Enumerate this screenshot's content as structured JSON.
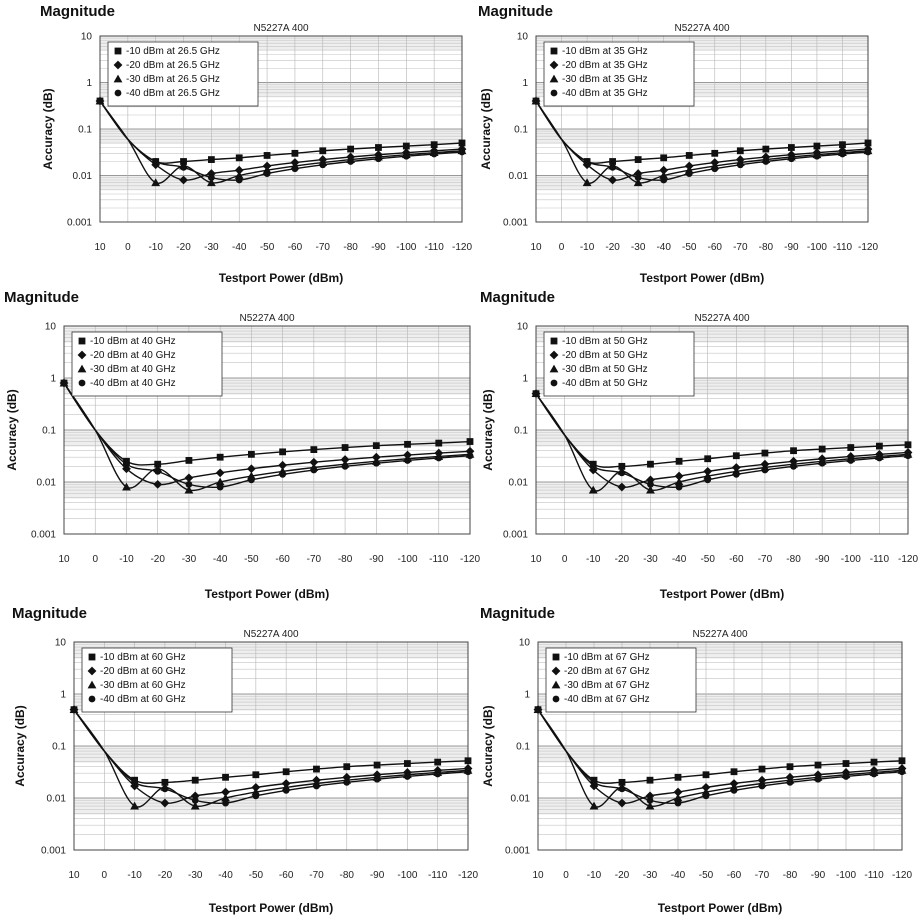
{
  "chart_data": [
    {
      "type": "line",
      "heading": "Magnitude",
      "title": "N5227A 400",
      "xlabel": "Testport Power (dBm)",
      "ylabel": "Accuracy (dB)",
      "y_scale": "log",
      "ylim": [
        0.001,
        10
      ],
      "y_ticks": [
        "10",
        "1",
        "0.1",
        "0.01",
        "0.001"
      ],
      "x": [
        10,
        0,
        -10,
        -20,
        -30,
        -40,
        -50,
        -60,
        -70,
        -80,
        -90,
        -100,
        -110,
        -120
      ],
      "x_ticks": [
        "10",
        "0",
        "-10",
        "-20",
        "-30",
        "-40",
        "-50",
        "-60",
        "-70",
        "-80",
        "-90",
        "-100",
        "-110",
        "-120"
      ],
      "grid": true,
      "legend_position": "top-left",
      "series": [
        {
          "name": "-10 dBm at 26.5 GHz",
          "marker": "square",
          "values": [
            0.4,
            0.06,
            0.02,
            0.02,
            0.022,
            0.024,
            0.027,
            0.03,
            0.034,
            0.037,
            0.04,
            0.043,
            0.046,
            0.05
          ]
        },
        {
          "name": "-20 dBm at 26.5 GHz",
          "marker": "diamond",
          "values": [
            0.4,
            0.06,
            0.017,
            0.008,
            0.011,
            0.013,
            0.016,
            0.019,
            0.022,
            0.025,
            0.028,
            0.031,
            0.034,
            0.037
          ]
        },
        {
          "name": "-30 dBm at 26.5 GHz",
          "marker": "triangle",
          "values": [
            0.4,
            0.06,
            0.007,
            0.016,
            0.007,
            0.01,
            0.013,
            0.016,
            0.019,
            0.022,
            0.025,
            0.028,
            0.031,
            0.034
          ]
        },
        {
          "name": "-40 dBm at 26.5 GHz",
          "marker": "circle",
          "values": [
            0.4,
            0.06,
            0.02,
            0.015,
            0.009,
            0.008,
            0.011,
            0.014,
            0.017,
            0.02,
            0.023,
            0.026,
            0.029,
            0.032
          ]
        }
      ]
    },
    {
      "type": "line",
      "heading": "Magnitude",
      "title": "N5227A 400",
      "xlabel": "Testport Power (dBm)",
      "ylabel": "Accuracy (dB)",
      "y_scale": "log",
      "ylim": [
        0.001,
        10
      ],
      "y_ticks": [
        "10",
        "1",
        "0.1",
        "0.01",
        "0.001"
      ],
      "x": [
        10,
        0,
        -10,
        -20,
        -30,
        -40,
        -50,
        -60,
        -70,
        -80,
        -90,
        -100,
        -110,
        -120
      ],
      "x_ticks": [
        "10",
        "0",
        "-10",
        "-20",
        "-30",
        "-40",
        "-50",
        "-60",
        "-70",
        "-80",
        "-90",
        "-100",
        "-110",
        "-120"
      ],
      "grid": true,
      "legend_position": "top-left",
      "series": [
        {
          "name": "-10 dBm at 35 GHz",
          "marker": "square",
          "values": [
            0.4,
            0.06,
            0.02,
            0.02,
            0.022,
            0.024,
            0.027,
            0.03,
            0.034,
            0.037,
            0.04,
            0.043,
            0.046,
            0.05
          ]
        },
        {
          "name": "-20 dBm at 35 GHz",
          "marker": "diamond",
          "values": [
            0.4,
            0.06,
            0.017,
            0.008,
            0.011,
            0.013,
            0.016,
            0.019,
            0.022,
            0.025,
            0.028,
            0.031,
            0.034,
            0.037
          ]
        },
        {
          "name": "-30 dBm at 35 GHz",
          "marker": "triangle",
          "values": [
            0.4,
            0.06,
            0.007,
            0.016,
            0.007,
            0.01,
            0.013,
            0.016,
            0.019,
            0.022,
            0.025,
            0.028,
            0.031,
            0.034
          ]
        },
        {
          "name": "-40 dBm at 35 GHz",
          "marker": "circle",
          "values": [
            0.4,
            0.06,
            0.02,
            0.015,
            0.009,
            0.008,
            0.011,
            0.014,
            0.017,
            0.02,
            0.023,
            0.026,
            0.029,
            0.032
          ]
        }
      ]
    },
    {
      "type": "line",
      "heading": "Magnitude",
      "title": "N5227A 400",
      "xlabel": "Testport Power (dBm)",
      "ylabel": "Accuracy (dB)",
      "y_scale": "log",
      "ylim": [
        0.001,
        10
      ],
      "y_ticks": [
        "10",
        "1",
        "0.1",
        "0.01",
        "0.001"
      ],
      "x": [
        10,
        0,
        -10,
        -20,
        -30,
        -40,
        -50,
        -60,
        -70,
        -80,
        -90,
        -100,
        -110,
        -120
      ],
      "x_ticks": [
        "10",
        "0",
        "-10",
        "-20",
        "-30",
        "-40",
        "-50",
        "-60",
        "-70",
        "-80",
        "-90",
        "-100",
        "-110",
        "-120"
      ],
      "grid": true,
      "legend_position": "top-left",
      "series": [
        {
          "name": "-10 dBm at 40 GHz",
          "marker": "square",
          "values": [
            0.8,
            0.1,
            0.025,
            0.022,
            0.026,
            0.03,
            0.034,
            0.038,
            0.042,
            0.046,
            0.05,
            0.053,
            0.056,
            0.06
          ]
        },
        {
          "name": "-20 dBm at 40 GHz",
          "marker": "diamond",
          "values": [
            0.8,
            0.1,
            0.018,
            0.009,
            0.012,
            0.015,
            0.018,
            0.021,
            0.024,
            0.027,
            0.03,
            0.033,
            0.036,
            0.039
          ]
        },
        {
          "name": "-30 dBm at 40 GHz",
          "marker": "triangle",
          "values": [
            0.8,
            0.1,
            0.008,
            0.018,
            0.007,
            0.01,
            0.013,
            0.016,
            0.019,
            0.022,
            0.025,
            0.028,
            0.031,
            0.034
          ]
        },
        {
          "name": "-40 dBm at 40 GHz",
          "marker": "circle",
          "values": [
            0.8,
            0.1,
            0.022,
            0.016,
            0.009,
            0.008,
            0.011,
            0.014,
            0.017,
            0.02,
            0.023,
            0.026,
            0.029,
            0.032
          ]
        }
      ]
    },
    {
      "type": "line",
      "heading": "Magnitude",
      "title": "N5227A 400",
      "xlabel": "Testport Power (dBm)",
      "ylabel": "Accuracy (dB)",
      "y_scale": "log",
      "ylim": [
        0.001,
        10
      ],
      "y_ticks": [
        "10",
        "1",
        "0.1",
        "0.01",
        "0.001"
      ],
      "x": [
        10,
        0,
        -10,
        -20,
        -30,
        -40,
        -50,
        -60,
        -70,
        -80,
        -90,
        -100,
        -110,
        -120
      ],
      "x_ticks": [
        "10",
        "0",
        "-10",
        "-20",
        "-30",
        "-40",
        "-50",
        "-60",
        "-70",
        "-80",
        "-90",
        "-100",
        "-110",
        "-120"
      ],
      "grid": true,
      "legend_position": "top-left",
      "series": [
        {
          "name": "-10 dBm at 50 GHz",
          "marker": "square",
          "values": [
            0.5,
            0.08,
            0.022,
            0.02,
            0.022,
            0.025,
            0.028,
            0.032,
            0.036,
            0.04,
            0.043,
            0.046,
            0.049,
            0.052
          ]
        },
        {
          "name": "-20 dBm at 50 GHz",
          "marker": "diamond",
          "values": [
            0.5,
            0.08,
            0.017,
            0.008,
            0.011,
            0.013,
            0.016,
            0.019,
            0.022,
            0.025,
            0.028,
            0.031,
            0.034,
            0.037
          ]
        },
        {
          "name": "-30 dBm at 50 GHz",
          "marker": "triangle",
          "values": [
            0.5,
            0.08,
            0.007,
            0.016,
            0.007,
            0.01,
            0.013,
            0.016,
            0.019,
            0.022,
            0.025,
            0.028,
            0.031,
            0.034
          ]
        },
        {
          "name": "-40 dBm at 50 GHz",
          "marker": "circle",
          "values": [
            0.5,
            0.08,
            0.02,
            0.015,
            0.009,
            0.008,
            0.011,
            0.014,
            0.017,
            0.02,
            0.023,
            0.026,
            0.029,
            0.032
          ]
        }
      ]
    },
    {
      "type": "line",
      "heading": "Magnitude",
      "title": "N5227A 400",
      "xlabel": "Testport Power (dBm)",
      "ylabel": "Accuracy (dB)",
      "y_scale": "log",
      "ylim": [
        0.001,
        10
      ],
      "y_ticks": [
        "10",
        "1",
        "0.1",
        "0.01",
        "0.001"
      ],
      "x": [
        10,
        0,
        -10,
        -20,
        -30,
        -40,
        -50,
        -60,
        -70,
        -80,
        -90,
        -100,
        -110,
        -120
      ],
      "x_ticks": [
        "10",
        "0",
        "-10",
        "-20",
        "-30",
        "-40",
        "-50",
        "-60",
        "-70",
        "-80",
        "-90",
        "-100",
        "-110",
        "-120"
      ],
      "grid": true,
      "legend_position": "top-left",
      "series": [
        {
          "name": "-10 dBm at 60 GHz",
          "marker": "square",
          "values": [
            0.5,
            0.08,
            0.022,
            0.02,
            0.022,
            0.025,
            0.028,
            0.032,
            0.036,
            0.04,
            0.043,
            0.046,
            0.049,
            0.052
          ]
        },
        {
          "name": "-20 dBm at 60 GHz",
          "marker": "diamond",
          "values": [
            0.5,
            0.08,
            0.017,
            0.008,
            0.011,
            0.013,
            0.016,
            0.019,
            0.022,
            0.025,
            0.028,
            0.031,
            0.034,
            0.037
          ]
        },
        {
          "name": "-30 dBm at 60 GHz",
          "marker": "triangle",
          "values": [
            0.5,
            0.08,
            0.007,
            0.016,
            0.007,
            0.01,
            0.013,
            0.016,
            0.019,
            0.022,
            0.025,
            0.028,
            0.031,
            0.034
          ]
        },
        {
          "name": "-40 dBm at 60 GHz",
          "marker": "circle",
          "values": [
            0.5,
            0.08,
            0.02,
            0.015,
            0.009,
            0.008,
            0.011,
            0.014,
            0.017,
            0.02,
            0.023,
            0.026,
            0.029,
            0.032
          ]
        }
      ]
    },
    {
      "type": "line",
      "heading": "Magnitude",
      "title": "N5227A 400",
      "xlabel": "Testport Power (dBm)",
      "ylabel": "Accuracy (dB)",
      "y_scale": "log",
      "ylim": [
        0.001,
        10
      ],
      "y_ticks": [
        "10",
        "1",
        "0.1",
        "0.01",
        "0.001"
      ],
      "x": [
        10,
        0,
        -10,
        -20,
        -30,
        -40,
        -50,
        -60,
        -70,
        -80,
        -90,
        -100,
        -110,
        -120
      ],
      "x_ticks": [
        "10",
        "0",
        "-10",
        "-20",
        "-30",
        "-40",
        "-50",
        "-60",
        "-70",
        "-80",
        "-90",
        "-100",
        "-110",
        "-120"
      ],
      "grid": true,
      "legend_position": "top-left",
      "series": [
        {
          "name": "-10 dBm at 67 GHz",
          "marker": "square",
          "values": [
            0.5,
            0.08,
            0.022,
            0.02,
            0.022,
            0.025,
            0.028,
            0.032,
            0.036,
            0.04,
            0.043,
            0.046,
            0.049,
            0.052
          ]
        },
        {
          "name": "-20 dBm at 67 GHz",
          "marker": "diamond",
          "values": [
            0.5,
            0.08,
            0.017,
            0.008,
            0.011,
            0.013,
            0.016,
            0.019,
            0.022,
            0.025,
            0.028,
            0.031,
            0.034,
            0.037
          ]
        },
        {
          "name": "-30 dBm at 67 GHz",
          "marker": "triangle",
          "values": [
            0.5,
            0.08,
            0.007,
            0.016,
            0.007,
            0.01,
            0.013,
            0.016,
            0.019,
            0.022,
            0.025,
            0.028,
            0.031,
            0.034
          ]
        },
        {
          "name": "-40 dBm at 67 GHz",
          "marker": "circle",
          "values": [
            0.5,
            0.08,
            0.02,
            0.015,
            0.009,
            0.008,
            0.011,
            0.014,
            0.017,
            0.02,
            0.023,
            0.026,
            0.029,
            0.032
          ]
        }
      ]
    }
  ]
}
